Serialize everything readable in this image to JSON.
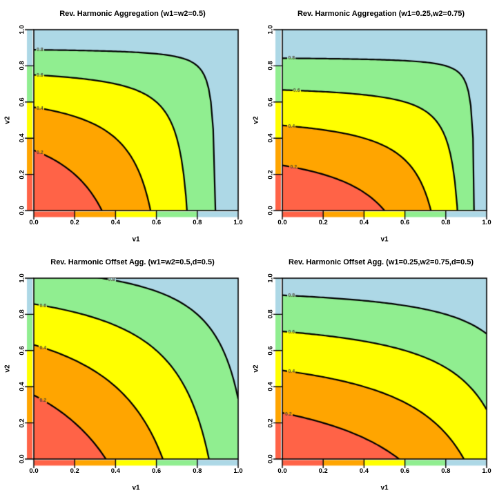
{
  "figure": {
    "background": "#FFFFFF",
    "palette": {
      "band_breaks": [
        0,
        0.2,
        0.4,
        0.6,
        0.8,
        1.0
      ],
      "band_colors": [
        "#FF6347",
        "#FFA500",
        "#FFFF00",
        "#90EE90",
        "#ADD8E6"
      ],
      "contour_line_color": "#000000",
      "contour_label_color": "#4a4430",
      "axis_text_color": "#000000"
    }
  },
  "chart_data": [
    {
      "type": "heatmap",
      "title": "Rev. Harmonic Aggregation (w1=w2=0.5)",
      "xlabel": "v1",
      "ylabel": "v2",
      "xlim": [
        0,
        1
      ],
      "ylim": [
        0,
        1
      ],
      "x_tick_labels": [
        "0.0",
        "0.2",
        "0.4",
        "0.6",
        "0.8",
        "1.0"
      ],
      "y_tick_labels": [
        "0.0",
        "0.2",
        "0.4",
        "0.6",
        "0.8",
        "1.0"
      ],
      "function": {
        "kind": "reverse_harmonic",
        "w1": 0.5,
        "w2": 0.5,
        "d": 0
      },
      "contour_levels": [
        0.2,
        0.4,
        0.6,
        0.8
      ],
      "contour_level_labels": [
        "0.2",
        "0.4",
        "0.6",
        "0.8"
      ],
      "label_anchor_x": [
        0.03,
        0.03,
        0.03,
        0.03
      ]
    },
    {
      "type": "heatmap",
      "title": "Rev. Harmonic Aggregation (w1=0.25,w2=0.75)",
      "xlabel": "v1",
      "ylabel": "v2",
      "xlim": [
        0,
        1
      ],
      "ylim": [
        0,
        1
      ],
      "x_tick_labels": [
        "0.0",
        "0.2",
        "0.4",
        "0.6",
        "0.8",
        "1.0"
      ],
      "y_tick_labels": [
        "0.0",
        "0.2",
        "0.4",
        "0.6",
        "0.8",
        "1.0"
      ],
      "function": {
        "kind": "reverse_harmonic",
        "w1": 0.25,
        "w2": 0.75,
        "d": 0
      },
      "contour_levels": [
        0.2,
        0.4,
        0.6,
        0.8
      ],
      "contour_level_labels": [
        "0.2",
        "0.4",
        "0.6",
        "0.8"
      ],
      "label_anchor_x": [
        0.055,
        0.045,
        0.07,
        0.045
      ]
    },
    {
      "type": "heatmap",
      "title": "Rev. Harmonic Offset Agg. (w1=w2=0.5,d=0.5)",
      "xlabel": "v1",
      "ylabel": "v2",
      "xlim": [
        0,
        1
      ],
      "ylim": [
        0,
        1
      ],
      "x_tick_labels": [
        "0.0",
        "0.2",
        "0.4",
        "0.6",
        "0.8",
        "1.0"
      ],
      "y_tick_labels": [
        "0.0",
        "0.2",
        "0.4",
        "0.6",
        "0.8",
        "1.0"
      ],
      "function": {
        "kind": "reverse_harmonic",
        "w1": 0.5,
        "w2": 0.5,
        "d": 0.5
      },
      "contour_levels": [
        0.2,
        0.4,
        0.6,
        0.8
      ],
      "contour_level_labels": [
        "0.2",
        "0.4",
        "0.6",
        "0.8"
      ],
      "label_anchor_x": [
        0.045,
        0.045,
        0.045,
        0.38
      ]
    },
    {
      "type": "heatmap",
      "title": "Rev. Harmonic Offset Agg. (w1=0.25,w2=0.75,d=0.5)",
      "xlabel": "v1",
      "ylabel": "v2",
      "xlim": [
        0,
        1
      ],
      "ylim": [
        0,
        1
      ],
      "x_tick_labels": [
        "0.0",
        "0.2",
        "0.4",
        "0.6",
        "0.8",
        "1.0"
      ],
      "y_tick_labels": [
        "0.0",
        "0.2",
        "0.4",
        "0.6",
        "0.8",
        "1.0"
      ],
      "function": {
        "kind": "reverse_harmonic",
        "w1": 0.25,
        "w2": 0.75,
        "d": 0.5
      },
      "contour_levels": [
        0.2,
        0.4,
        0.6,
        0.8
      ],
      "contour_level_labels": [
        "0.2",
        "0.4",
        "0.6",
        "0.8"
      ],
      "label_anchor_x": [
        0.03,
        0.045,
        0.045,
        0.045
      ]
    }
  ]
}
